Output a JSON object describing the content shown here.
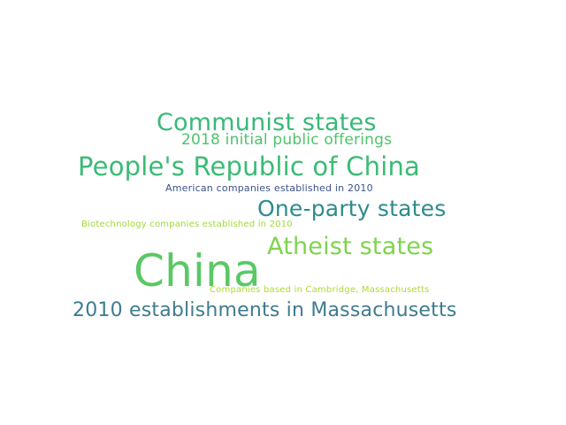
{
  "words": [
    {
      "text": "China",
      "color": "#5ac864"
    },
    {
      "text": "People's Republic of China",
      "color": "#3bbb75"
    },
    {
      "text": "Communist states",
      "color": "#38b977"
    },
    {
      "text": "2010 establishments in Massachusetts",
      "color": "#3e7c8e"
    },
    {
      "text": "One-party states",
      "color": "#2d8c8c"
    },
    {
      "text": "Atheist states",
      "color": "#7fd34e"
    },
    {
      "text": "2018 initial public offerings",
      "color": "#4dc36b"
    },
    {
      "text": "American companies established in 2010",
      "color": "#3b528b"
    },
    {
      "text": "Biotechnology companies established in 2010",
      "color": "#a0da39"
    },
    {
      "text": "Companies based in Cambridge, Massachusetts",
      "color": "#addc30"
    }
  ]
}
